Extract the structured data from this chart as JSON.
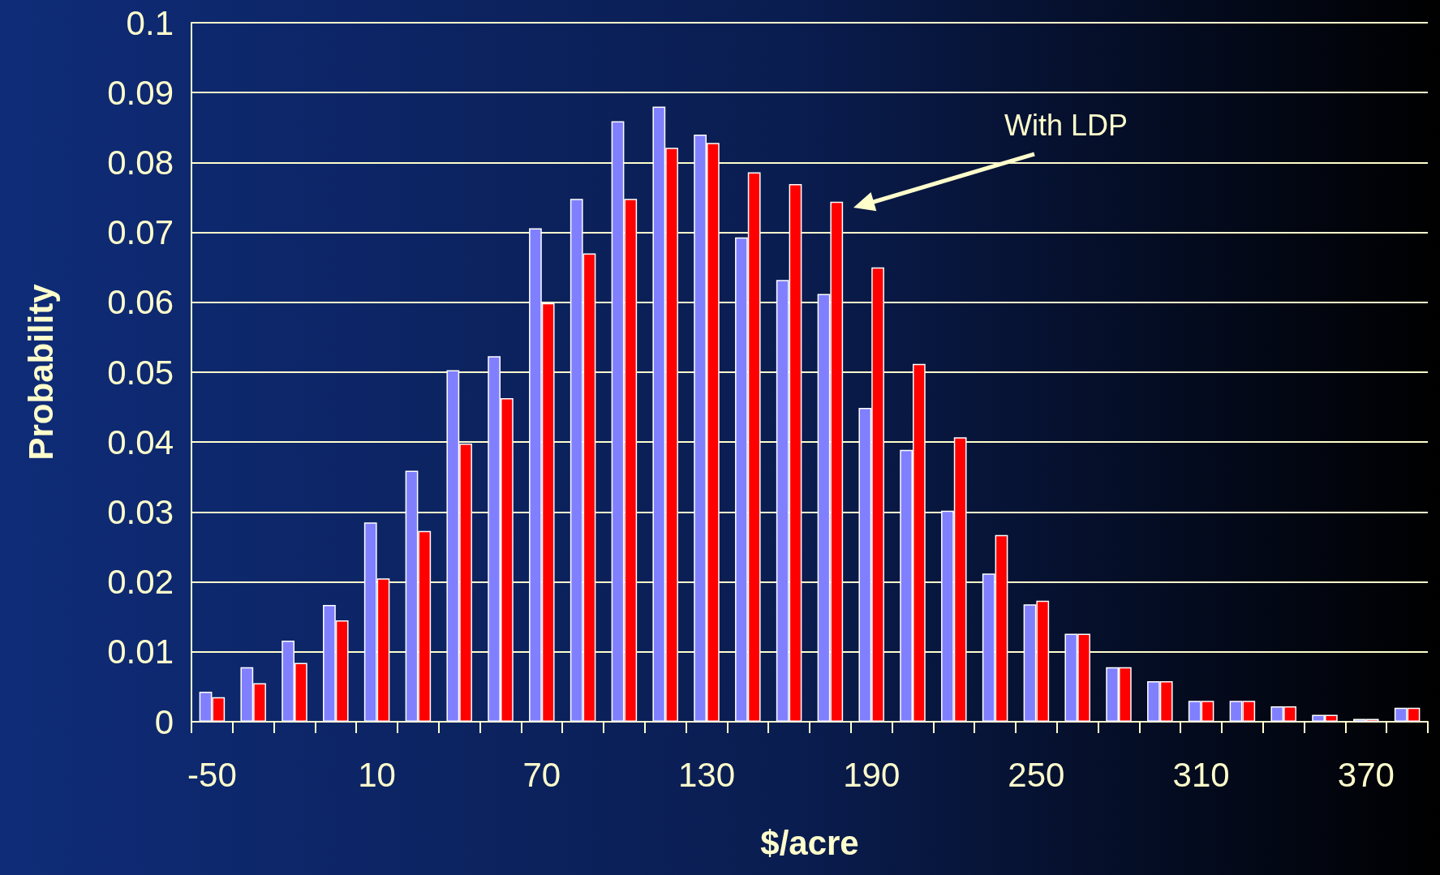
{
  "chart_data": {
    "type": "bar",
    "xlabel": "$/acre",
    "ylabel": "Probability",
    "categories": [
      "-50",
      null,
      null,
      null,
      "10",
      null,
      null,
      null,
      "70",
      null,
      null,
      null,
      "130",
      null,
      null,
      null,
      "190",
      null,
      null,
      null,
      "250",
      null,
      null,
      null,
      "310",
      null,
      null,
      null,
      "370",
      null
    ],
    "series": [
      {
        "color": "#8080ff",
        "values": [
          0.0043,
          0.0078,
          0.0116,
          0.0167,
          0.0285,
          0.0359,
          0.0503,
          0.0523,
          0.0706,
          0.0748,
          0.0859,
          0.088,
          0.084,
          0.0693,
          0.0632,
          0.0612,
          0.0449,
          0.0389,
          0.0302,
          0.0212,
          0.0168,
          0.0126,
          0.0078,
          0.0058,
          0.003,
          0.003,
          0.0022,
          0.001,
          0.0004,
          0.002
        ]
      },
      {
        "color": "#ff0000",
        "values": [
          0.0035,
          0.0055,
          0.0084,
          0.0145,
          0.0205,
          0.0273,
          0.0398,
          0.0463,
          0.0599,
          0.067,
          0.0748,
          0.0821,
          0.0828,
          0.0786,
          0.0769,
          0.0744,
          0.065,
          0.0512,
          0.0407,
          0.0267,
          0.0173,
          0.0126,
          0.0078,
          0.0058,
          0.003,
          0.003,
          0.0022,
          0.001,
          0.0004,
          0.002
        ]
      }
    ],
    "ylim": [
      0,
      0.1
    ],
    "yticks": [
      0,
      0.01,
      0.02,
      0.03,
      0.04,
      0.05,
      0.06,
      0.07,
      0.08,
      0.09,
      0.1
    ],
    "grid": "y",
    "annotations": [
      "With LDP"
    ]
  }
}
